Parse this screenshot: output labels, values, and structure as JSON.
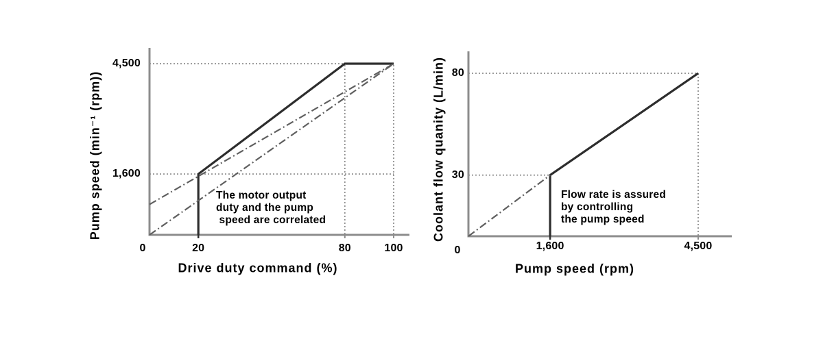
{
  "page": {
    "background": "#ffffff",
    "description_left_chart": "Pump speed versus drive duty command",
    "description_right_chart": "Coolant flow quantity versus pump speed"
  },
  "colors": {
    "axis": "#8c8c8c",
    "solid_line": "#2d2d2d",
    "dashdot_line": "#5f5f5f",
    "dotted_guide": "#8f8f8f",
    "text": "#000000"
  },
  "chart_data": [
    {
      "type": "line",
      "title": "",
      "xlabel": "Drive duty command (%)",
      "ylabel": "Pump speed (min⁻¹ (rpm))",
      "xlim": [
        0,
        100
      ],
      "ylim": [
        0,
        4500
      ],
      "grid": "dotted guide lines only",
      "legend": "none",
      "origin_label": "0",
      "x_ticks": [
        {
          "value": 20,
          "label": "20"
        },
        {
          "value": 80,
          "label": "80"
        },
        {
          "value": 100,
          "label": "100"
        }
      ],
      "y_ticks": [
        {
          "value": 1600,
          "label": "1,600"
        },
        {
          "value": 4500,
          "label": "4,500"
        }
      ],
      "series": [
        {
          "name": "pump-speed-response",
          "style": "solid",
          "points": [
            [
              20,
              0
            ],
            [
              20,
              1600
            ],
            [
              80,
              4500
            ],
            [
              100,
              4500
            ]
          ]
        },
        {
          "name": "correlation-reference-upper",
          "style": "dash-dot",
          "points": [
            [
              0,
              800
            ],
            [
              100,
              4500
            ]
          ]
        },
        {
          "name": "correlation-reference-lower",
          "style": "dash-dot",
          "points": [
            [
              0,
              0
            ],
            [
              100,
              4500
            ]
          ]
        }
      ],
      "guides": [
        {
          "orient": "h",
          "at": 4500,
          "from": 0,
          "to": 100
        },
        {
          "orient": "h",
          "at": 1600,
          "from": 0,
          "to": 100
        },
        {
          "orient": "v",
          "at": 80,
          "from": 0,
          "to": 4500
        },
        {
          "orient": "v",
          "at": 100,
          "from": 0,
          "to": 4500
        }
      ],
      "annotation_lines": [
        "The motor output",
        "duty and the pump",
        " speed are correlated"
      ]
    },
    {
      "type": "line",
      "title": "",
      "xlabel": "Pump speed (rpm)",
      "ylabel": "Coolant flow quanity (L/min)",
      "xlim": [
        0,
        4500
      ],
      "ylim": [
        0,
        80
      ],
      "grid": "dotted guide lines only",
      "legend": "none",
      "origin_label": "0",
      "x_ticks": [
        {
          "value": 1600,
          "label": "1,600"
        },
        {
          "value": 4500,
          "label": "4,500"
        }
      ],
      "y_ticks": [
        {
          "value": 30,
          "label": "30"
        },
        {
          "value": 80,
          "label": "80"
        }
      ],
      "series": [
        {
          "name": "flow-rate-response",
          "style": "solid",
          "points": [
            [
              1600,
              0
            ],
            [
              1600,
              30
            ],
            [
              4500,
              80
            ]
          ]
        },
        {
          "name": "proportional-reference",
          "style": "dash-dot",
          "points": [
            [
              0,
              0
            ],
            [
              1600,
              30
            ]
          ]
        }
      ],
      "guides": [
        {
          "orient": "h",
          "at": 80,
          "from": 0,
          "to": 4500
        },
        {
          "orient": "h",
          "at": 30,
          "from": 0,
          "to": 1600
        },
        {
          "orient": "v",
          "at": 4500,
          "from": 0,
          "to": 80
        }
      ],
      "annotation_lines": [
        "Flow rate is assured",
        "by controlling",
        "the pump speed"
      ]
    }
  ]
}
